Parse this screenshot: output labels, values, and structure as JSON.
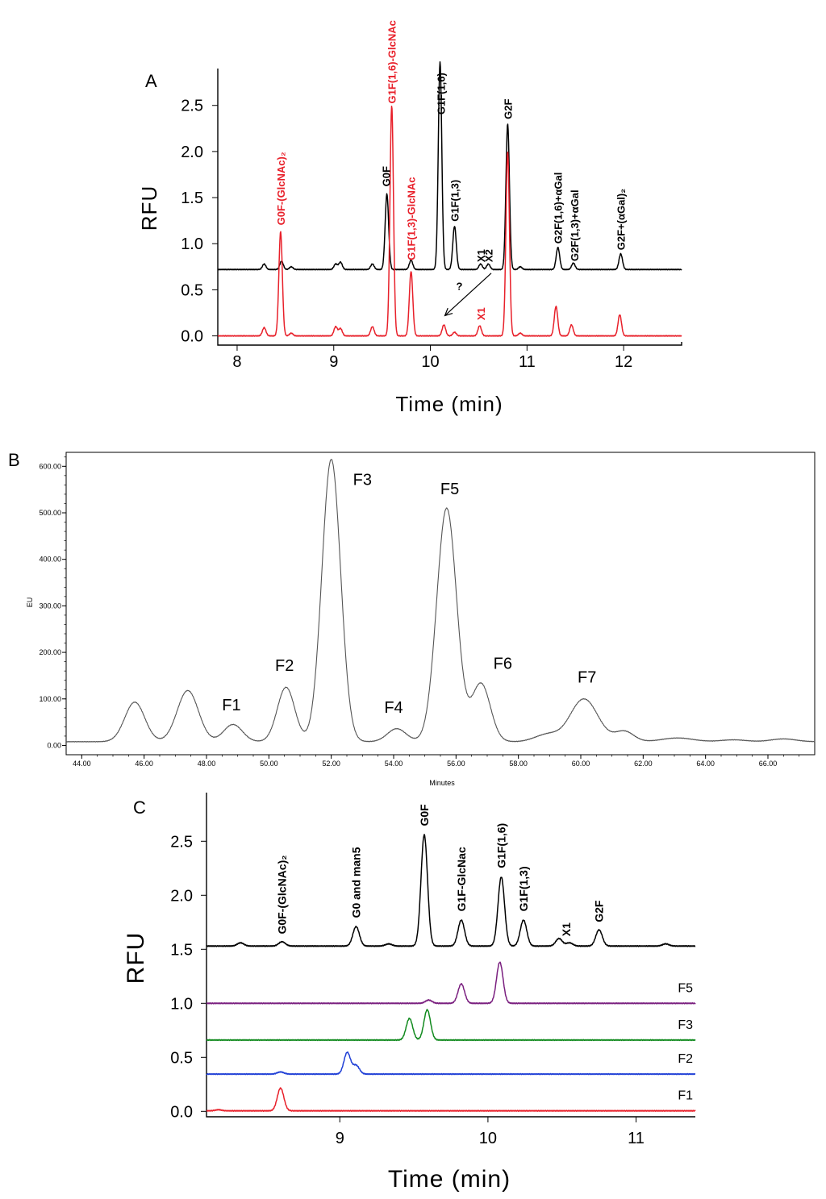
{
  "figure": {
    "colors": {
      "black": "#000000",
      "red": "#e8202a",
      "purple": "#7a1f7f",
      "green": "#118a1e",
      "blue": "#1f3fd6",
      "gray": "#555555"
    }
  },
  "chart_data": [
    {
      "panel": "A",
      "type": "line",
      "xlabel": "Time (min)",
      "ylabel": "RFU",
      "xlim": [
        7.8,
        12.6
      ],
      "ylim": [
        -0.1,
        2.9
      ],
      "xticks": [
        8,
        9,
        10,
        11,
        12
      ],
      "yticks": [
        0.0,
        0.5,
        1.0,
        1.5,
        2.0,
        2.5
      ],
      "series": [
        {
          "name": "black trace",
          "color": "#000000",
          "baseline": 0.72,
          "peaks": [
            [
              8.28,
              0.06
            ],
            [
              8.46,
              0.09
            ],
            [
              8.56,
              0.03
            ],
            [
              9.02,
              0.06
            ],
            [
              9.07,
              0.08
            ],
            [
              9.4,
              0.06
            ],
            [
              9.55,
              0.82
            ],
            [
              9.8,
              0.1
            ],
            [
              10.1,
              2.25
            ],
            [
              10.25,
              0.47
            ],
            [
              10.52,
              0.06
            ],
            [
              10.6,
              0.06
            ],
            [
              10.8,
              1.58
            ],
            [
              10.93,
              0.03
            ],
            [
              11.32,
              0.24
            ],
            [
              11.48,
              0.07
            ],
            [
              11.97,
              0.17
            ]
          ]
        },
        {
          "name": "red trace",
          "color": "#e8202a",
          "baseline": 0.0,
          "peaks": [
            [
              8.28,
              0.09
            ],
            [
              8.45,
              1.13
            ],
            [
              8.56,
              0.03
            ],
            [
              9.02,
              0.1
            ],
            [
              9.07,
              0.08
            ],
            [
              9.4,
              0.1
            ],
            [
              9.6,
              2.5
            ],
            [
              9.8,
              0.7
            ],
            [
              10.14,
              0.12
            ],
            [
              10.25,
              0.04
            ],
            [
              10.51,
              0.11
            ],
            [
              10.8,
              2.0
            ],
            [
              10.93,
              0.03
            ],
            [
              11.3,
              0.32
            ],
            [
              11.46,
              0.12
            ],
            [
              11.96,
              0.23
            ]
          ]
        }
      ],
      "annotations": [
        {
          "text": "G0F-(GlcNAc)₂",
          "x": 8.45,
          "y": 1.2,
          "color": "#e8202a"
        },
        {
          "text": "G1F(1,6)-GlcNAc",
          "x": 9.6,
          "y": 2.52,
          "color": "#e8202a"
        },
        {
          "text": "G1F(1,3)-GlcNAc",
          "x": 9.8,
          "y": 0.82,
          "color": "#e8202a"
        },
        {
          "text": "G0F",
          "x": 9.54,
          "y": 1.62,
          "color": "#000000"
        },
        {
          "text": "G1F(1,6)",
          "x": 10.11,
          "y": 2.4,
          "color": "#000000"
        },
        {
          "text": "G1F(1,3)",
          "x": 10.25,
          "y": 1.24,
          "color": "#000000"
        },
        {
          "text": "X1",
          "x": 10.52,
          "y": 0.8,
          "color": "#000000"
        },
        {
          "text": "X2",
          "x": 10.6,
          "y": 0.8,
          "color": "#000000"
        },
        {
          "text": "G2F",
          "x": 10.8,
          "y": 2.35,
          "color": "#000000"
        },
        {
          "text": "G2F(1,6)+αGal",
          "x": 11.32,
          "y": 1.0,
          "color": "#000000"
        },
        {
          "text": "G2F(1,3)+αGal",
          "x": 11.49,
          "y": 0.81,
          "color": "#000000"
        },
        {
          "text": "G2F+(αGal)₂",
          "x": 11.97,
          "y": 0.93,
          "color": "#000000"
        },
        {
          "text": "?",
          "x": 10.3,
          "y": 0.5,
          "color": "#000000"
        },
        {
          "text": "X1",
          "x": 10.52,
          "y": 0.17,
          "color": "#e8202a"
        }
      ],
      "arrow": {
        "from": [
          10.63,
          0.68
        ],
        "to": [
          10.15,
          0.22
        ]
      }
    },
    {
      "panel": "B",
      "type": "line",
      "xlabel": "Minutes",
      "ylabel": "EU",
      "xlim": [
        43.5,
        67.5
      ],
      "ylim": [
        -20,
        630
      ],
      "xticks": [
        44,
        46,
        48,
        50,
        52,
        54,
        56,
        58,
        60,
        62,
        64,
        66
      ],
      "xtick_labels": [
        "44.00",
        "46.00",
        "48.00",
        "50.00",
        "52.00",
        "54.00",
        "56.00",
        "58.00",
        "60.00",
        "62.00",
        "64.00",
        "66.00"
      ],
      "yticks": [
        0,
        100,
        200,
        300,
        400,
        500,
        600
      ],
      "ytick_labels": [
        "0.00",
        "100.00",
        "200.00",
        "300.00",
        "400.00",
        "500.00",
        "600.00"
      ],
      "series": [
        {
          "name": "fractionation trace",
          "color": "#555555",
          "baseline": 8,
          "peaks": [
            [
              45.7,
              85,
              0.32
            ],
            [
              47.4,
              110,
              0.34
            ],
            [
              48.85,
              37,
              0.3
            ],
            [
              50.55,
              117,
              0.28
            ],
            [
              52.0,
              607,
              0.3
            ],
            [
              54.1,
              28,
              0.3
            ],
            [
              55.7,
              502,
              0.32
            ],
            [
              56.8,
              125,
              0.3
            ],
            [
              58.6,
              6,
              0.3
            ],
            [
              59.0,
              12,
              0.3
            ],
            [
              60.1,
              92,
              0.45
            ],
            [
              61.4,
              22,
              0.3
            ],
            [
              63.1,
              8,
              0.5
            ],
            [
              64.9,
              4,
              0.4
            ],
            [
              66.5,
              6,
              0.4
            ]
          ]
        }
      ],
      "peak_labels": [
        {
          "text": "F1",
          "x": 48.8,
          "y": 75
        },
        {
          "text": "F2",
          "x": 50.5,
          "y": 160
        },
        {
          "text": "F3",
          "x": 53.0,
          "y": 560
        },
        {
          "text": "F4",
          "x": 54.0,
          "y": 70
        },
        {
          "text": "F5",
          "x": 55.8,
          "y": 540
        },
        {
          "text": "F6",
          "x": 57.5,
          "y": 165
        },
        {
          "text": "F7",
          "x": 60.2,
          "y": 135
        }
      ]
    },
    {
      "panel": "C",
      "type": "line",
      "xlabel": "Time (min)",
      "ylabel": "RFU",
      "xlim": [
        8.1,
        11.4
      ],
      "ylim": [
        -0.05,
        2.95
      ],
      "xticks": [
        9,
        10,
        11
      ],
      "yticks": [
        0.0,
        0.5,
        1.0,
        1.5,
        2.0,
        2.5
      ],
      "series": [
        {
          "name": "black trace",
          "color": "#000000",
          "baseline": 1.53,
          "peaks": [
            [
              8.33,
              0.03
            ],
            [
              8.61,
              0.04
            ],
            [
              9.11,
              0.18
            ],
            [
              9.33,
              0.02
            ],
            [
              9.57,
              1.03
            ],
            [
              9.82,
              0.24
            ],
            [
              10.09,
              0.64
            ],
            [
              10.24,
              0.24
            ],
            [
              10.48,
              0.07
            ],
            [
              10.55,
              0.03
            ],
            [
              10.75,
              0.15
            ],
            [
              11.2,
              0.02
            ]
          ]
        },
        {
          "name": "F5",
          "color": "#7a1f7f",
          "baseline": 1.0,
          "peaks": [
            [
              9.6,
              0.03
            ],
            [
              9.82,
              0.18
            ],
            [
              10.08,
              0.38
            ]
          ]
        },
        {
          "name": "F3",
          "color": "#118a1e",
          "baseline": 0.66,
          "peaks": [
            [
              9.47,
              0.2
            ],
            [
              9.59,
              0.28
            ]
          ]
        },
        {
          "name": "F2",
          "color": "#1f3fd6",
          "baseline": 0.345,
          "peaks": [
            [
              8.6,
              0.02
            ],
            [
              9.05,
              0.2
            ],
            [
              9.11,
              0.08
            ]
          ]
        },
        {
          "name": "F1",
          "color": "#e8202a",
          "baseline": 0.005,
          "peaks": [
            [
              8.18,
              0.01
            ],
            [
              8.6,
              0.21
            ]
          ]
        }
      ],
      "annotations": [
        {
          "text": "G0F-(GlcNAc)₂",
          "x": 8.61,
          "y": 1.64
        },
        {
          "text": "G0 and man5",
          "x": 9.11,
          "y": 1.79
        },
        {
          "text": "G0F",
          "x": 9.57,
          "y": 2.64
        },
        {
          "text": "G1F-GlcNac",
          "x": 9.82,
          "y": 1.85
        },
        {
          "text": "G1F(1,6)",
          "x": 10.09,
          "y": 2.25
        },
        {
          "text": "G1F(1,3)",
          "x": 10.24,
          "y": 1.85
        },
        {
          "text": "X1",
          "x": 10.53,
          "y": 1.62
        },
        {
          "text": "G2F",
          "x": 10.75,
          "y": 1.75
        }
      ]
    }
  ]
}
